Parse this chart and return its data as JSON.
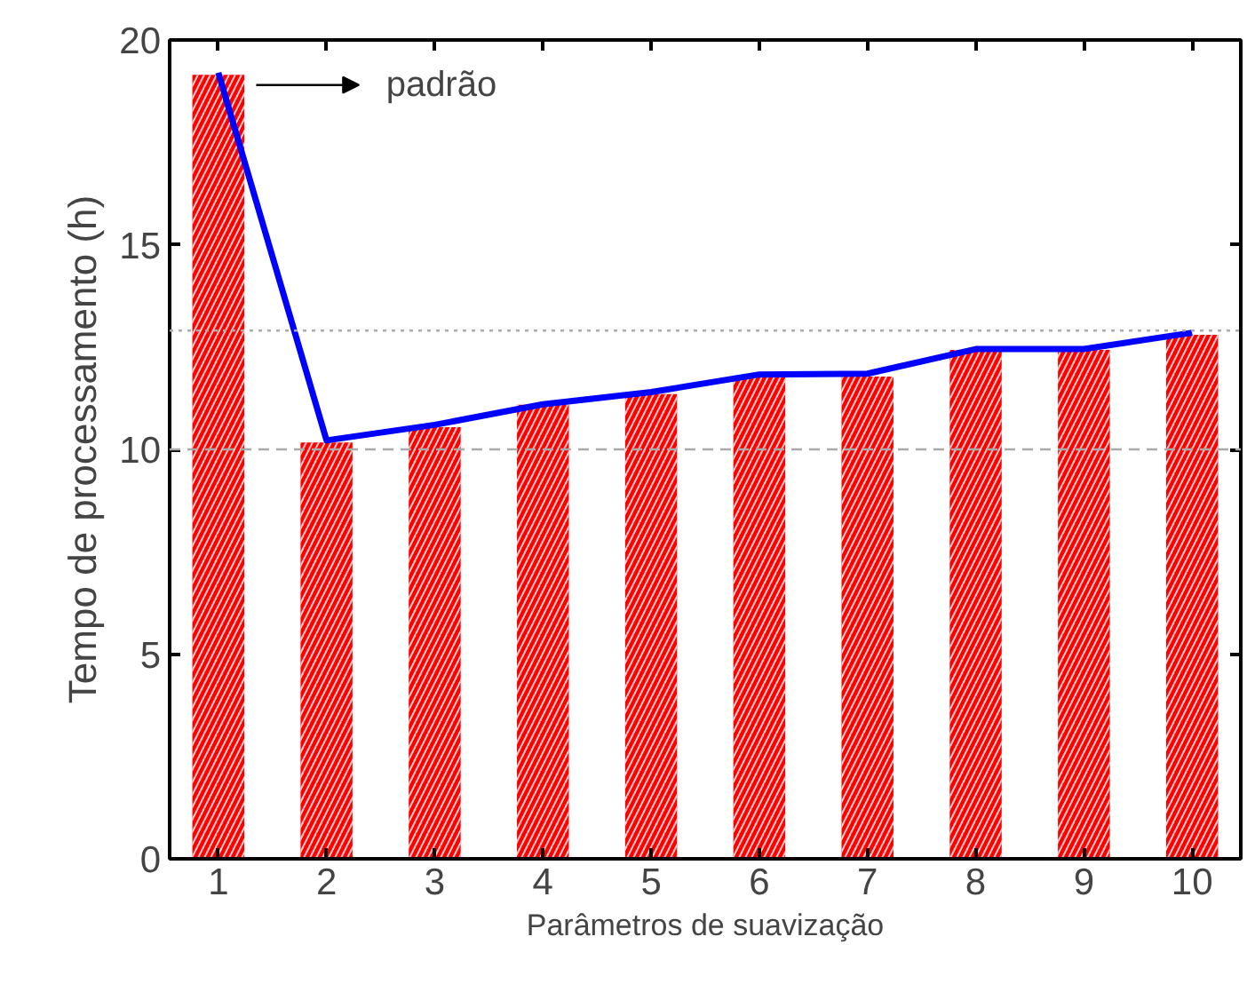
{
  "chart_data": {
    "type": "bar",
    "xlabel": "Parâmetros de suavização",
    "ylabel": "Tempo de processamento (h)",
    "x": [
      1,
      2,
      3,
      4,
      5,
      6,
      7,
      8,
      9,
      10
    ],
    "series": [
      {
        "color": "#ff0000",
        "values": [
          19.15,
          10.17,
          10.54,
          11.09,
          11.35,
          11.78,
          11.78,
          12.43,
          12.43,
          12.8
        ]
      },
      {
        "type": "line",
        "color": "#0000ff",
        "values": [
          19.2,
          10.22,
          10.6,
          11.1,
          11.4,
          11.83,
          11.85,
          12.45,
          12.45,
          12.85
        ]
      }
    ],
    "xlim": [
      0.55,
      10.45
    ],
    "xticks": [
      1,
      2,
      3,
      4,
      5,
      6,
      7,
      8,
      9,
      10
    ],
    "ylim": [
      0,
      20
    ],
    "yticks": [
      0,
      5,
      10,
      15,
      20
    ],
    "ref_lines": [
      {
        "axis": "y",
        "value": 10,
        "color": "#aaaaaa",
        "line_style": "dashed"
      },
      {
        "axis": "y",
        "value": 12.9,
        "color": "#aaaaaa",
        "line_style": "dotted"
      }
    ],
    "annotations": [
      "padrão"
    ],
    "grid": false
  }
}
